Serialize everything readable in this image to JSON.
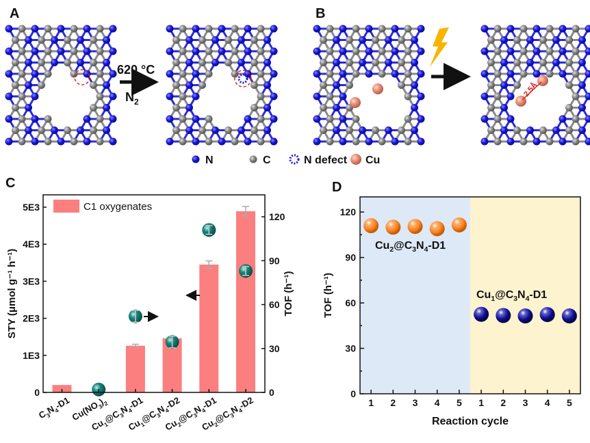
{
  "panel_a": {
    "label": "A",
    "condition_temp": "620 °C",
    "condition_gas": "N",
    "condition_gas_sub": "2"
  },
  "panel_b": {
    "label": "B",
    "distance": "2.5Å"
  },
  "legend_atoms": [
    {
      "symbol": "N",
      "color": "#1a1adb"
    },
    {
      "symbol": "C",
      "color": "#8a8a8a"
    },
    {
      "symbol": "N defect",
      "color": "#1a1adb"
    },
    {
      "symbol": "Cu",
      "color": "#e8907a"
    }
  ],
  "chart_data": [
    {
      "panel": "C",
      "type": "bar",
      "categories": [
        "C3N4-D1",
        "Cu(NO3)2",
        "Cu1@C3N4-D1",
        "Cu1@C3N4-D2",
        "Cu2@C3N4-D1",
        "Cu2@C3N4-D2"
      ],
      "category_labels": [
        [
          [
            "C",
            "n"
          ],
          [
            "3",
            "s"
          ],
          [
            "N",
            "n"
          ],
          [
            "4",
            "s"
          ],
          [
            "-D1",
            "n"
          ]
        ],
        [
          [
            "Cu(NO",
            "n"
          ],
          [
            "3",
            "s"
          ],
          [
            ")",
            "n"
          ],
          [
            "2",
            "s"
          ]
        ],
        [
          [
            "Cu",
            "n"
          ],
          [
            "1",
            "s"
          ],
          [
            "@C",
            "n"
          ],
          [
            "3",
            "s"
          ],
          [
            "N",
            "n"
          ],
          [
            "4",
            "s"
          ],
          [
            "-D1",
            "n"
          ]
        ],
        [
          [
            "Cu",
            "n"
          ],
          [
            "1",
            "s"
          ],
          [
            "@C",
            "n"
          ],
          [
            "3",
            "s"
          ],
          [
            "N",
            "n"
          ],
          [
            "4",
            "s"
          ],
          [
            "-D2",
            "n"
          ]
        ],
        [
          [
            "Cu",
            "n"
          ],
          [
            "2",
            "s"
          ],
          [
            "@C",
            "n"
          ],
          [
            "3",
            "s"
          ],
          [
            "N",
            "n"
          ],
          [
            "4",
            "s"
          ],
          [
            "-D1",
            "n"
          ]
        ],
        [
          [
            "Cu",
            "n"
          ],
          [
            "2",
            "s"
          ],
          [
            "@C",
            "n"
          ],
          [
            "3",
            "s"
          ],
          [
            "N",
            "n"
          ],
          [
            "4",
            "s"
          ],
          [
            "-D2",
            "n"
          ]
        ]
      ],
      "series": [
        {
          "name": "C1 oxygenates",
          "kind": "bar",
          "axis": "left",
          "color": "#fc7f7f",
          "values": [
            200,
            0,
            1260,
            1460,
            3450,
            4890
          ],
          "errors": [
            0,
            0,
            40,
            0,
            100,
            130
          ]
        },
        {
          "kind": "scatter",
          "axis": "right",
          "color": "#107a70",
          "values": [
            null,
            2,
            52,
            34.5,
            111,
            83
          ],
          "errors": [
            0,
            0,
            4,
            4,
            3,
            3
          ]
        }
      ],
      "ylabel_left": "STY (μmol g⁻¹ h⁻¹)",
      "ylabel_right": "TOF (h⁻¹)",
      "yticks_left": [
        0,
        1000,
        2000,
        3000,
        4000,
        5000
      ],
      "yticklabels_left": [
        "0",
        "1E3",
        "2E3",
        "3E3",
        "4E3",
        "5E3"
      ],
      "yticks_right": [
        0,
        30,
        60,
        90,
        120
      ],
      "ylim_left": [
        0,
        5333
      ],
      "ylim_right": [
        0,
        135
      ],
      "legend": "top-left",
      "grid": false
    },
    {
      "panel": "D",
      "type": "scatter",
      "xlabel": "Reaction cycle",
      "ylabel": "TOF (h⁻¹)",
      "ylim": [
        0,
        130
      ],
      "yticks": [
        0,
        30,
        60,
        90,
        120
      ],
      "grid": false,
      "series": [
        {
          "name": "Cu2@C3N4-D1",
          "name_parts": [
            [
              "Cu",
              "n"
            ],
            [
              "2",
              "s"
            ],
            [
              "@C",
              "n"
            ],
            [
              "3",
              "s"
            ],
            [
              "N",
              "n"
            ],
            [
              "4",
              "s"
            ],
            [
              "-D1",
              "n"
            ]
          ],
          "color": "#f58220",
          "background": "#dde9f6",
          "cycles": [
            1,
            2,
            3,
            4,
            5
          ],
          "values": [
            111,
            110,
            110.5,
            109,
            111.5
          ]
        },
        {
          "name": "Cu1@C3N4-D1",
          "name_parts": [
            [
              "Cu",
              "n"
            ],
            [
              "1",
              "s"
            ],
            [
              "@C",
              "n"
            ],
            [
              "3",
              "s"
            ],
            [
              "N",
              "n"
            ],
            [
              "4",
              "s"
            ],
            [
              "-D1",
              "n"
            ]
          ],
          "color": "#0c0c8a",
          "background": "#fdf3cf",
          "cycles": [
            1,
            2,
            3,
            4,
            5
          ],
          "values": [
            52.5,
            51.7,
            51.4,
            52.3,
            51.4
          ]
        }
      ]
    }
  ]
}
